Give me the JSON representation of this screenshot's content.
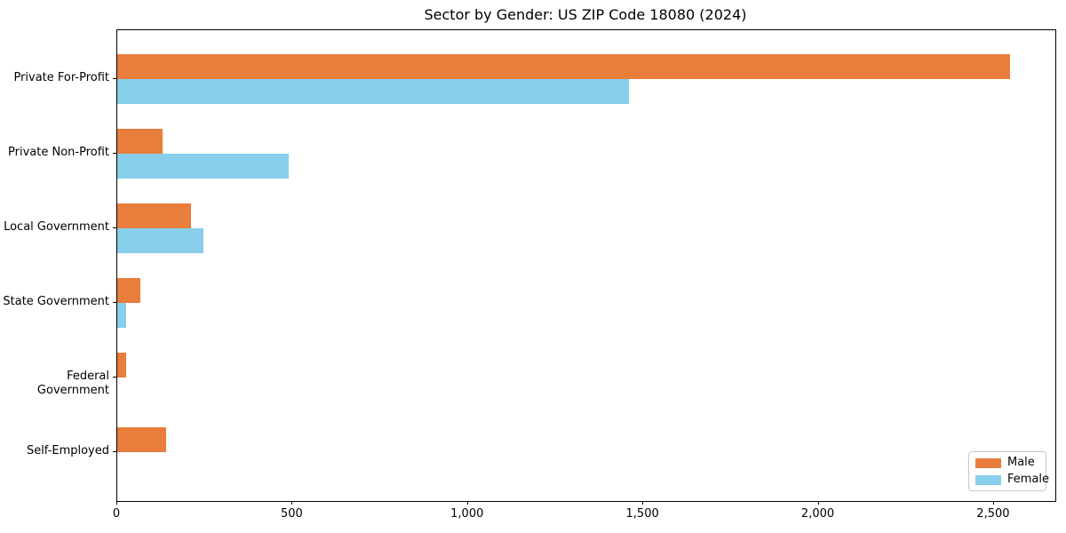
{
  "chart_data": {
    "type": "bar",
    "orientation": "horizontal",
    "title": "Sector by Gender: US ZIP Code 18080 (2024)",
    "categories": [
      "Private For-Profit",
      "Private Non-Profit",
      "Local Government",
      "State Government",
      "Federal Government",
      "Self-Employed"
    ],
    "series": [
      {
        "name": "Male",
        "color": "#e87d3c",
        "values": [
          2545,
          130,
          210,
          65,
          25,
          140
        ]
      },
      {
        "name": "Female",
        "color": "#87ceeb",
        "values": [
          1460,
          490,
          245,
          25,
          0,
          0
        ]
      }
    ],
    "xlim": [
      0,
      2675
    ],
    "x_ticks": [
      0,
      500,
      1000,
      1500,
      2000,
      2500
    ],
    "x_tick_labels": [
      "0",
      "500",
      "1,000",
      "1,500",
      "2,000",
      "2,500"
    ],
    "xlabel": "",
    "ylabel": "",
    "grid": false,
    "legend_position": "lower right"
  },
  "colors": {
    "spine": "#000000",
    "text": "#000000",
    "background": "#ffffff",
    "legend_border": "#c8c8c8",
    "male": "#e87d3c",
    "female": "#87ceeb"
  }
}
